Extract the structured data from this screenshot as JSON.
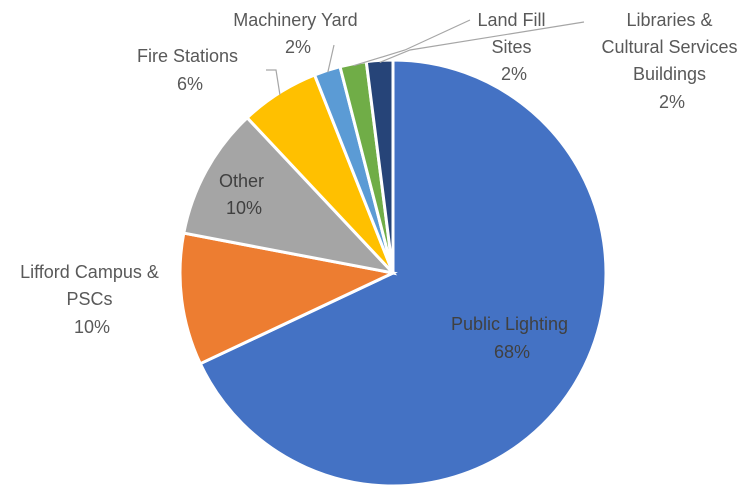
{
  "chart_data": {
    "type": "pie",
    "title": "",
    "slices": [
      {
        "label": "Public Lighting",
        "value": 68,
        "value_label": "68%",
        "color": "#4472C4"
      },
      {
        "label": "Lifford Campus & PSCs",
        "value": 10,
        "value_label": "10%",
        "color": "#ED7D31"
      },
      {
        "label": "Other",
        "value": 10,
        "value_label": "10%",
        "color": "#A5A5A5"
      },
      {
        "label": "Fire Stations",
        "value": 6,
        "value_label": "6%",
        "color": "#FFC000"
      },
      {
        "label": "Machinery Yard",
        "value": 2,
        "value_label": "2%",
        "color": "#5B9BD5"
      },
      {
        "label": "Land Fill Sites",
        "value": 2,
        "value_label": "2%",
        "color": "#70AD47"
      },
      {
        "label": "Libraries & Cultural Services Buildings",
        "value": 2,
        "value_label": "2%",
        "color": "#264478"
      }
    ],
    "label_lines": {
      "public_lighting": [
        "Public Lighting",
        "68%"
      ],
      "lifford": [
        "Lifford Campus &",
        "PSCs",
        "10%"
      ],
      "other": [
        "Other",
        "10%"
      ],
      "fire": [
        "Fire Stations",
        "6%"
      ],
      "machinery": [
        "Machinery Yard",
        "2%"
      ],
      "landfill": [
        "Land Fill",
        "Sites",
        "2%"
      ],
      "libraries": [
        "Libraries &",
        "Cultural Services",
        "Buildings",
        "2%"
      ]
    }
  }
}
